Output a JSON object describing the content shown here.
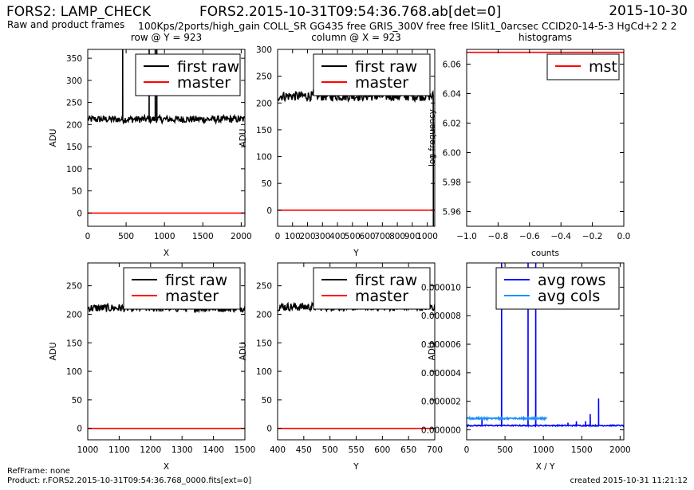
{
  "header": {
    "app_title": "FORS2: LAMP_CHECK",
    "subtitle": "Raw and product frames",
    "file_title": "FORS2.2015-10-31T09:54:36.768.ab[det=0]",
    "config_line": "100Kps/2ports/high_gain COLL_SR GG435 free GRIS_300V free free lSlit1_0arcsec CCID20-14-5-3 HgCd+2 2 2",
    "date": "2015-10-30"
  },
  "footer": {
    "refframe": "RefFrame: none",
    "product": "Product: r.FORS2.2015-10-31T09:54:36.768_0000.fits[ext=0]",
    "created": "created 2015-10-31 11:21:12"
  },
  "colors": {
    "raw": "#000000",
    "master": "#ff0000",
    "avg_rows": "#0000ff",
    "avg_cols": "#1e90ff"
  },
  "chart_data": [
    {
      "id": "p1",
      "type": "line",
      "title": "row @ Y = 923",
      "xlabel": "X",
      "ylabel": "ADU",
      "xlim": [
        0,
        2048
      ],
      "ylim": [
        -30,
        370
      ],
      "xticks": [
        0,
        500,
        1000,
        1500,
        2000
      ],
      "yticks": [
        0,
        50,
        100,
        150,
        200,
        250,
        300,
        350
      ],
      "legend": "top-right",
      "series": [
        {
          "name": "first raw",
          "color": "#000000",
          "baseline": 212,
          "noise": 8,
          "spikes": [
            [
              455,
              370
            ],
            [
              800,
              370
            ],
            [
              880,
              370
            ],
            [
              900,
              370
            ]
          ]
        },
        {
          "name": "master",
          "color": "#ff0000",
          "constant": 0
        }
      ]
    },
    {
      "id": "p2",
      "type": "line",
      "title": "column @ X = 923",
      "xlabel": "Y",
      "ylabel": "ADU",
      "xlim": [
        0,
        1050
      ],
      "ylim": [
        -30,
        300
      ],
      "xticks": [
        0,
        100,
        200,
        300,
        400,
        500,
        600,
        700,
        800,
        900,
        1000
      ],
      "yticks": [
        0,
        50,
        100,
        150,
        200,
        250,
        300
      ],
      "legend": "top-right",
      "series": [
        {
          "name": "first raw",
          "color": "#000000",
          "baseline": 213,
          "noise": 9,
          "drop_x": 1040
        },
        {
          "name": "master",
          "color": "#ff0000",
          "constant": 0
        }
      ]
    },
    {
      "id": "p3",
      "type": "line",
      "title": "histograms",
      "xlabel": "counts",
      "ylabel": "log frequency",
      "xlim": [
        -1.0,
        0.0
      ],
      "ylim": [
        5.95,
        6.07
      ],
      "xticks": [
        -1.0,
        -0.8,
        -0.6,
        -0.4,
        -0.2,
        0.0
      ],
      "xticklabels": [
        "−1.0",
        "−0.8",
        "−0.6",
        "−0.4",
        "−0.2",
        "0.0"
      ],
      "yticks": [
        5.96,
        5.98,
        6.0,
        6.02,
        6.04,
        6.06
      ],
      "yticklabels": [
        "5.96",
        "5.98",
        "6.00",
        "6.02",
        "6.04",
        "6.06"
      ],
      "legend": "top-right",
      "series": [
        {
          "name": "mst",
          "color": "#ff0000",
          "constant": 6.068
        }
      ]
    },
    {
      "id": "p4",
      "type": "line",
      "title": "",
      "xlabel": "X",
      "ylabel": "ADU",
      "xlim": [
        1000,
        1500
      ],
      "ylim": [
        -20,
        290
      ],
      "xticks": [
        1000,
        1100,
        1200,
        1300,
        1400,
        1500
      ],
      "yticks": [
        0,
        50,
        100,
        150,
        200,
        250
      ],
      "legend": "top-right",
      "series": [
        {
          "name": "first raw",
          "color": "#000000",
          "baseline": 211,
          "noise": 7
        },
        {
          "name": "master",
          "color": "#ff0000",
          "constant": 0
        }
      ]
    },
    {
      "id": "p5",
      "type": "line",
      "title": "",
      "xlabel": "Y",
      "ylabel": "ADU",
      "xlim": [
        400,
        700
      ],
      "ylim": [
        -20,
        290
      ],
      "xticks": [
        400,
        450,
        500,
        550,
        600,
        650,
        700
      ],
      "yticks": [
        0,
        50,
        100,
        150,
        200,
        250
      ],
      "legend": "top-right",
      "series": [
        {
          "name": "first raw",
          "color": "#000000",
          "baseline": 213,
          "noise": 7
        },
        {
          "name": "master",
          "color": "#ff0000",
          "constant": 0
        }
      ]
    },
    {
      "id": "p6",
      "type": "line",
      "title": "",
      "xlabel": "X / Y",
      "ylabel": "ADU",
      "xlim": [
        0,
        2048
      ],
      "ylim": [
        -7e-07,
        1.17e-05
      ],
      "xticks": [
        0,
        500,
        1000,
        1500,
        2000
      ],
      "yticks": [
        0,
        2e-06,
        4e-06,
        6e-06,
        8e-06,
        1e-05
      ],
      "yticklabels": [
        "0.000000",
        "0.000002",
        "0.000004",
        "0.000006",
        "0.000008",
        "0.000010"
      ],
      "legend": "top-right",
      "series": [
        {
          "name": "avg rows",
          "color": "#0000ff",
          "baseline": 3e-07,
          "noise": 4e-08,
          "spikes": [
            [
              200,
              8e-07
            ],
            [
              455,
              1.17e-05
            ],
            [
              800,
              1.17e-05
            ],
            [
              900,
              1.17e-05
            ],
            [
              1320,
              5e-07
            ],
            [
              1430,
              6e-07
            ],
            [
              1550,
              6e-07
            ],
            [
              1610,
              1.1e-06
            ],
            [
              1720,
              2.2e-06
            ],
            [
              1830,
              3e-07
            ]
          ]
        },
        {
          "name": "avg cols",
          "color": "#1e90ff",
          "baseline": 8e-07,
          "noise": 5e-08,
          "range": [
            0,
            1040
          ]
        }
      ]
    }
  ]
}
